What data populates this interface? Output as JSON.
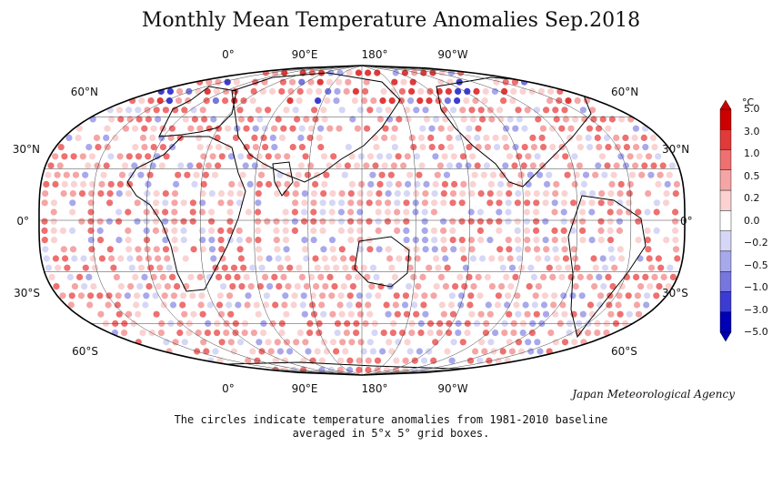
{
  "title": "Monthly Mean Temperature Anomalies Sep.2018",
  "agency": "Japan Meteorological Agency",
  "caption": {
    "line1": "The circles indicate temperature anomalies from 1981-2010 baseline",
    "line2": "averaged in 5°x 5° grid boxes."
  },
  "longitude_labels": [
    "0°",
    "90°E",
    "180°",
    "90°W"
  ],
  "latitude_labels": [
    "60°N",
    "30°N",
    "0°",
    "30°S",
    "60°S"
  ],
  "colorbar": {
    "unit": "°C",
    "ticks": [
      "5.0",
      "3.0",
      "1.0",
      "0.5",
      "0.2",
      "0.0",
      "−0.2",
      "−0.5",
      "−1.0",
      "−3.0",
      "−5.0"
    ],
    "colors": [
      "#cc0000",
      "#e03a3a",
      "#ee7070",
      "#f5a5a5",
      "#fad2d2",
      "#ffffff",
      "#d6d6f6",
      "#a8a8ec",
      "#7676de",
      "#3c3cd2",
      "#0000b4"
    ]
  },
  "colors": {
    "ocean_land_background": "#ffffff",
    "coastline": "#000000",
    "grid": "#333333"
  }
}
